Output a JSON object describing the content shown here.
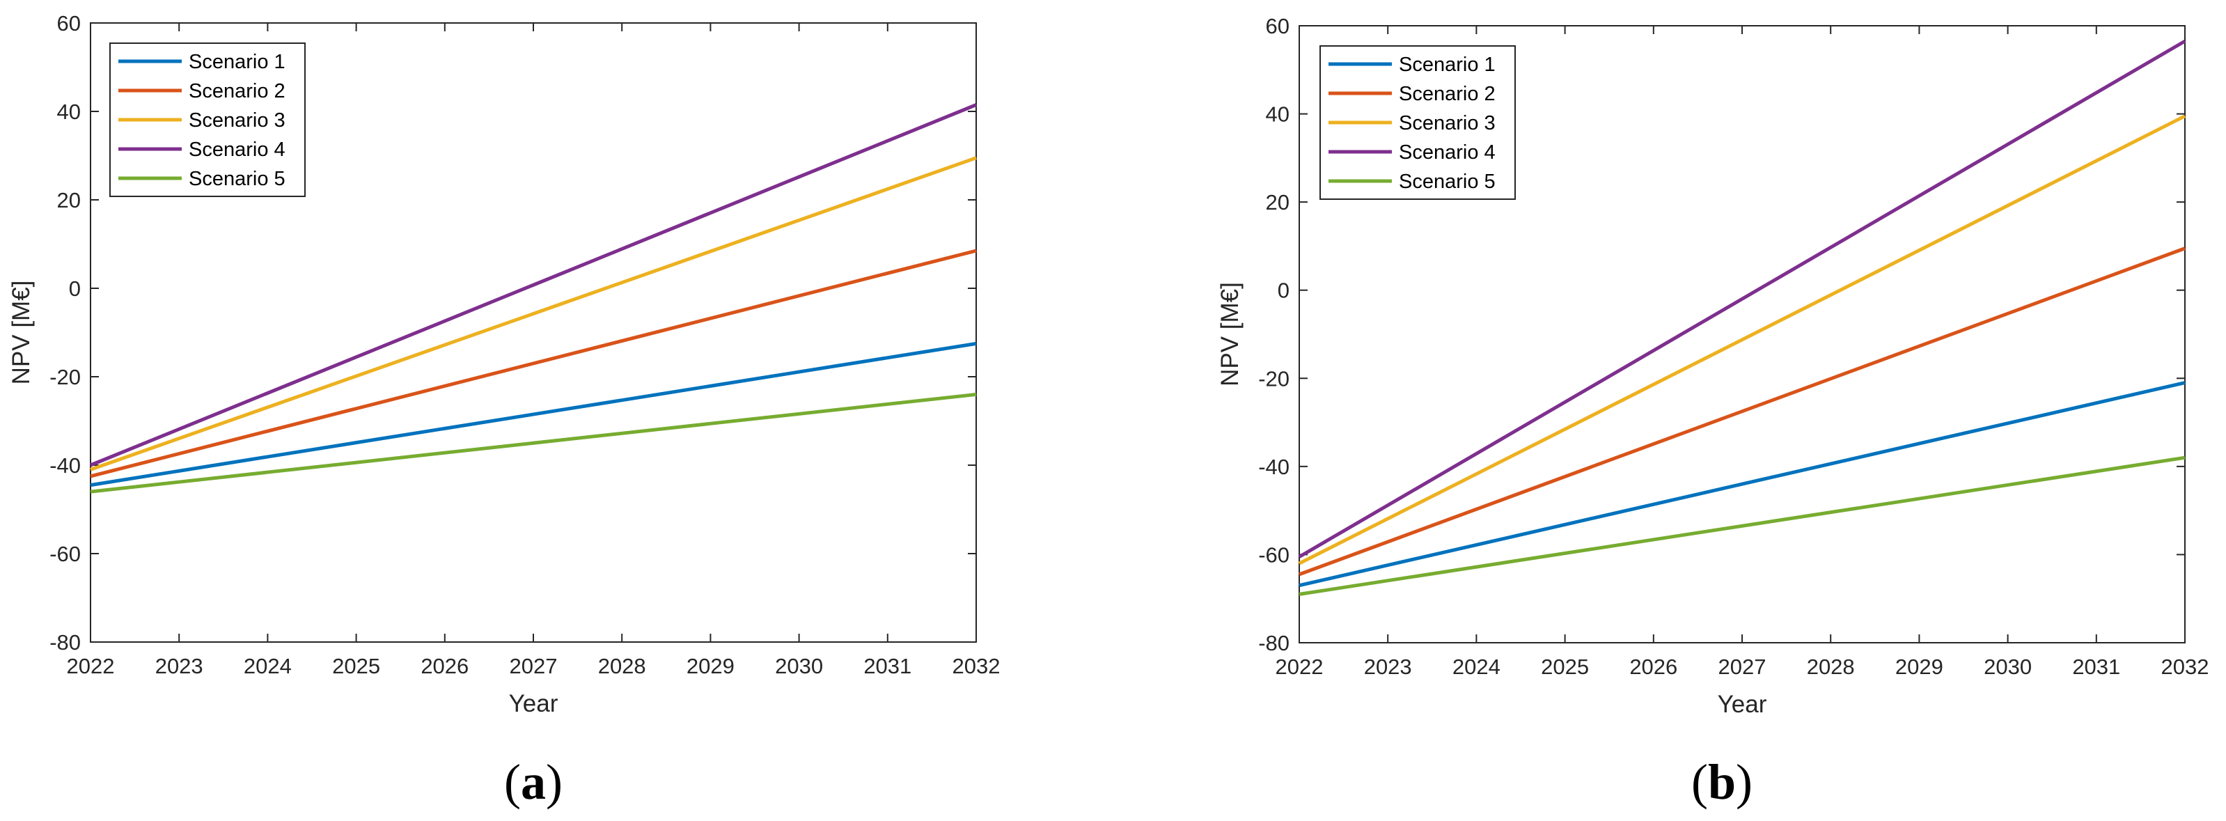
{
  "chart_data": [
    {
      "type": "line",
      "panel": "a",
      "panel_label": "(a)",
      "xlabel": "Year",
      "ylabel": "NPV [M€]",
      "xlim": [
        2022,
        2032
      ],
      "ylim": [
        -80,
        60
      ],
      "x_ticks": [
        "2022",
        "2023",
        "2024",
        "2025",
        "2026",
        "2027",
        "2028",
        "2029",
        "2030",
        "2031",
        "2032"
      ],
      "y_ticks": [
        "-80",
        "-60",
        "-40",
        "-20",
        "0",
        "20",
        "40",
        "60"
      ],
      "legend_position": "top-left",
      "series": [
        {
          "name": "Scenario 1",
          "x": [
            2022,
            2032
          ],
          "values": [
            -44.5,
            -12.5
          ]
        },
        {
          "name": "Scenario 2",
          "x": [
            2022,
            2032
          ],
          "values": [
            -42.5,
            8.5
          ]
        },
        {
          "name": "Scenario 3",
          "x": [
            2022,
            2032
          ],
          "values": [
            -41.0,
            29.5
          ]
        },
        {
          "name": "Scenario 4",
          "x": [
            2022,
            2032
          ],
          "values": [
            -40.0,
            41.5
          ]
        },
        {
          "name": "Scenario 5",
          "x": [
            2022,
            2032
          ],
          "values": [
            -46.0,
            -24.0
          ]
        }
      ]
    },
    {
      "type": "line",
      "panel": "b",
      "panel_label": "(b)",
      "xlabel": "Year",
      "ylabel": "NPV [M€]",
      "xlim": [
        2022,
        2032
      ],
      "ylim": [
        -80,
        60
      ],
      "x_ticks": [
        "2022",
        "2023",
        "2024",
        "2025",
        "2026",
        "2027",
        "2028",
        "2029",
        "2030",
        "2031",
        "2032"
      ],
      "y_ticks": [
        "-80",
        "-60",
        "-40",
        "-20",
        "0",
        "20",
        "40",
        "60"
      ],
      "legend_position": "top-left",
      "series": [
        {
          "name": "Scenario 1",
          "x": [
            2022,
            2032
          ],
          "values": [
            -67.0,
            -21.0
          ]
        },
        {
          "name": "Scenario 2",
          "x": [
            2022,
            2032
          ],
          "values": [
            -64.5,
            9.5
          ]
        },
        {
          "name": "Scenario 3",
          "x": [
            2022,
            2032
          ],
          "values": [
            -62.0,
            39.5
          ]
        },
        {
          "name": "Scenario 4",
          "x": [
            2022,
            2032
          ],
          "values": [
            -60.5,
            56.5
          ]
        },
        {
          "name": "Scenario 5",
          "x": [
            2022,
            2032
          ],
          "values": [
            -69.0,
            -38.0
          ]
        }
      ]
    }
  ],
  "colors": {
    "Scenario 1": "#0072BD",
    "Scenario 2": "#D95319",
    "Scenario 3": "#EDB120",
    "Scenario 4": "#7E2F8E",
    "Scenario 5": "#77AC30"
  }
}
